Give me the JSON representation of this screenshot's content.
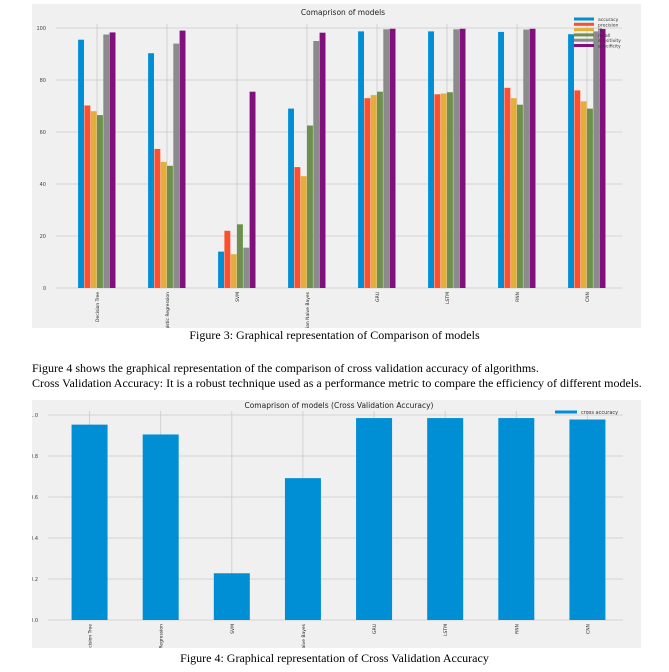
{
  "figure3": {
    "caption": "Figure 3: Graphical representation of Comparison of models",
    "chart_data": {
      "type": "bar",
      "title": "Comaprison of models",
      "categories": [
        "Decision Tree",
        "Logistic Regression",
        "SVM",
        "Gaussian Naive Bayes",
        "GRU",
        "LSTM",
        "RNN",
        "CNN"
      ],
      "series": [
        {
          "name": "accuracy",
          "color": "#008fd5",
          "values": [
            95.5,
            90.3,
            14,
            69,
            98.7,
            98.7,
            98.5,
            97.6
          ]
        },
        {
          "name": "precision",
          "color": "#fc4f30",
          "values": [
            70.2,
            53.5,
            22,
            46.5,
            73,
            74.5,
            77,
            76
          ]
        },
        {
          "name": "f1",
          "color": "#e5ae38",
          "values": [
            68,
            48.5,
            13,
            43,
            74.2,
            74.8,
            73,
            71.8
          ]
        },
        {
          "name": "recall",
          "color": "#6d904f",
          "values": [
            66.5,
            47,
            24.5,
            62.5,
            75.5,
            75.3,
            70.5,
            69
          ]
        },
        {
          "name": "sensitivity",
          "color": "#8b8b8b",
          "values": [
            97.5,
            94,
            15.5,
            95,
            99.5,
            99.5,
            99.4,
            98.7
          ]
        },
        {
          "name": "specificity",
          "color": "#810f7c",
          "values": [
            98.3,
            99,
            75.5,
            98.2,
            99.7,
            99.7,
            99.7,
            99.6
          ]
        }
      ],
      "ylim": [
        0,
        100
      ],
      "yticks": [
        "0",
        "20",
        "40",
        "60",
        "80",
        "100"
      ],
      "grid": true,
      "legend": "top-right"
    }
  },
  "paragraph": {
    "line1": "Figure 4 shows the graphical representation of the comparison of cross validation accuracy of algorithms.",
    "line2": "Cross Validation Accuracy: It is a robust technique used as a performance metric to compare the efficiency of different models."
  },
  "figure4": {
    "caption": "Figure 4: Graphical representation of Cross Validation Accuracy",
    "chart_data": {
      "type": "bar",
      "title": "Comaprison of models (Cross Validation Accuracy)",
      "categories": [
        "Decision Tree",
        "Logistic Regression",
        "SVM",
        "Gaussian Naive Bayes",
        "GRU",
        "LSTM",
        "RNN",
        "CNN"
      ],
      "series": [
        {
          "name": "cross accuracy",
          "color": "#008fd5",
          "values": [
            0.953,
            0.905,
            0.228,
            0.692,
            0.985,
            0.985,
            0.985,
            0.978
          ]
        }
      ],
      "ylim": [
        0,
        1.0
      ],
      "yticks": [
        "0.0",
        "0.2",
        "0.4",
        "0.6",
        "0.8",
        "1.0"
      ],
      "grid": true,
      "legend": "top-right"
    }
  }
}
